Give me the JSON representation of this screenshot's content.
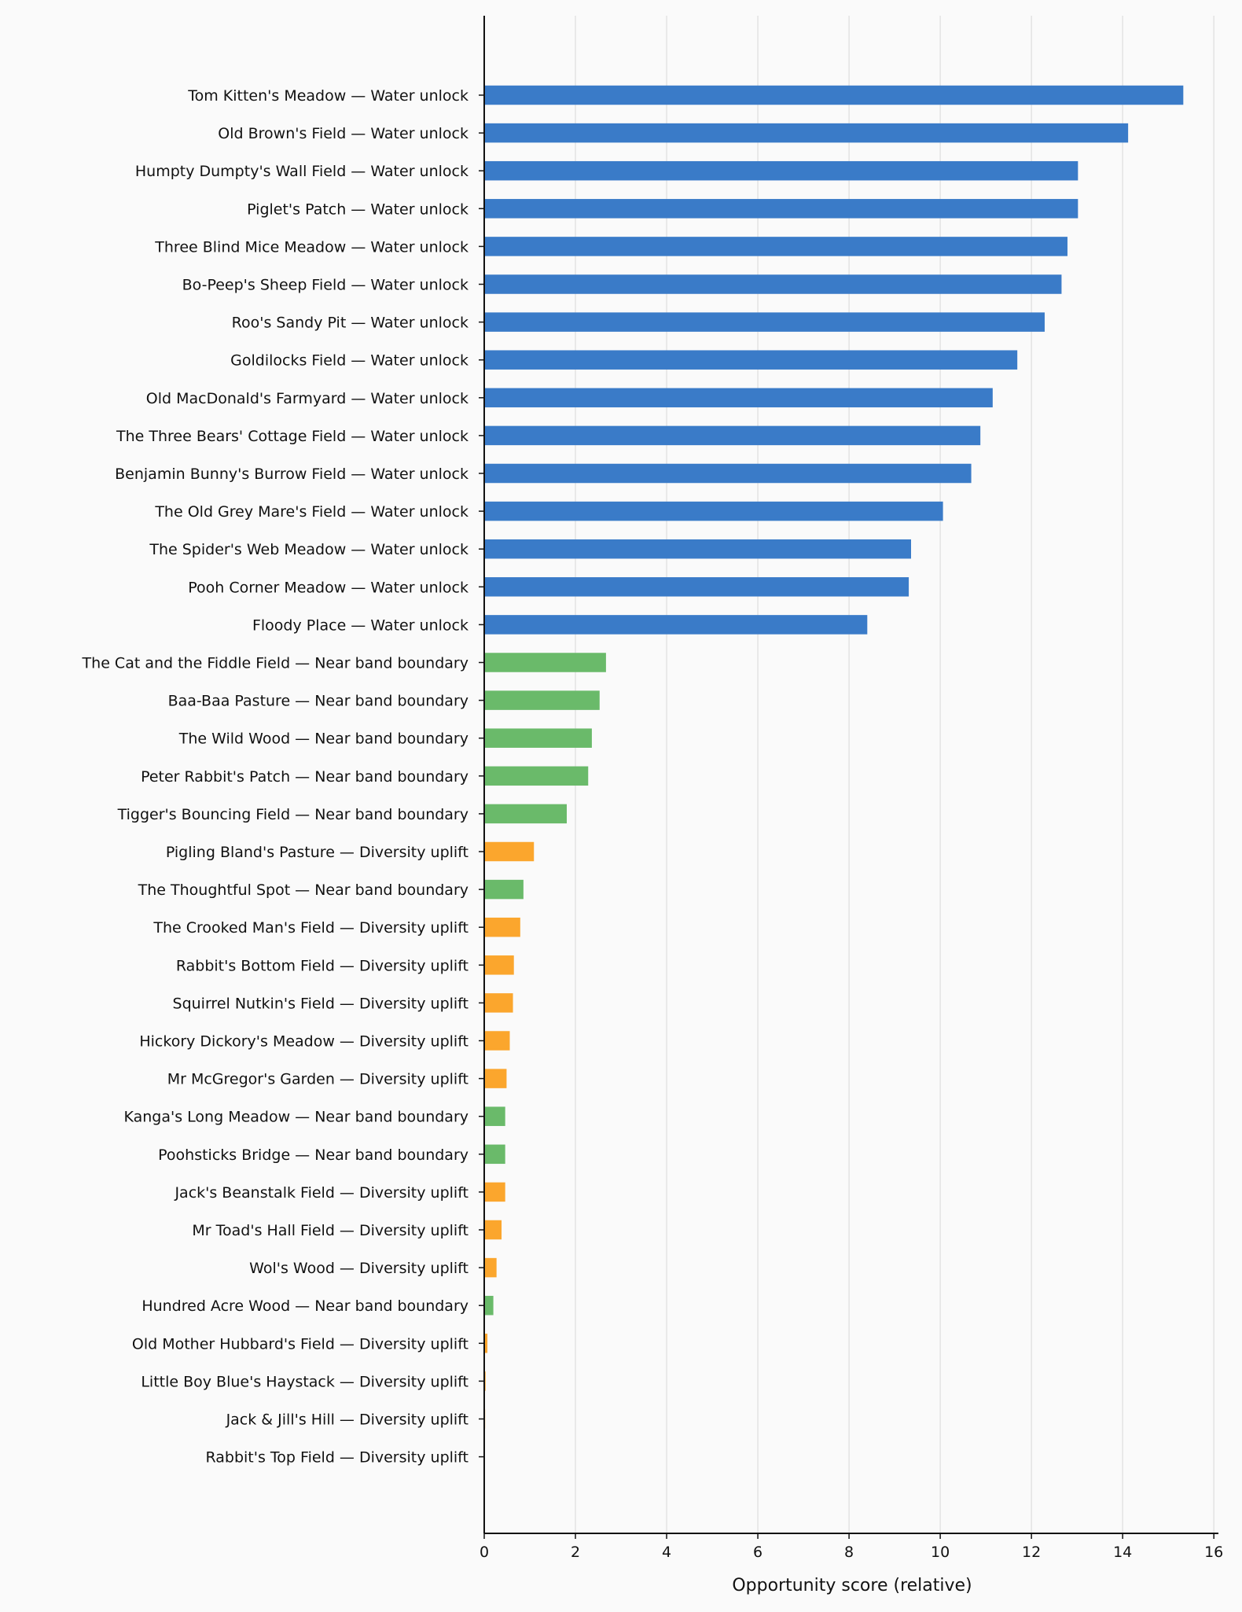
{
  "chart_data": {
    "type": "bar",
    "orientation": "horizontal",
    "xlabel": "Opportunity score (relative)",
    "ylabel": "",
    "title": "",
    "xlim": [
      0,
      16.1
    ],
    "xticks": [
      0,
      2,
      4,
      6,
      8,
      10,
      12,
      14,
      16
    ],
    "grid": "vertical",
    "colors": {
      "water_unlock": "#3a7bc8",
      "near_band_boundary": "#6aba6a",
      "diversity_uplift": "#fba62d"
    },
    "categories": [
      "Tom Kitten's Meadow — Water unlock",
      "Old Brown's Field — Water unlock",
      "Humpty Dumpty's Wall Field — Water unlock",
      "Piglet's Patch — Water unlock",
      "Three Blind Mice Meadow — Water unlock",
      "Bo-Peep's Sheep Field — Water unlock",
      "Roo's Sandy Pit — Water unlock",
      "Goldilocks Field — Water unlock",
      "Old MacDonald's Farmyard — Water unlock",
      "The Three Bears' Cottage Field — Water unlock",
      "Benjamin Bunny's Burrow Field — Water unlock",
      "The Old Grey Mare's Field — Water unlock",
      "The Spider's Web Meadow — Water unlock",
      "Pooh Corner Meadow — Water unlock",
      "Floody Place — Water unlock",
      "The Cat and the Fiddle Field — Near band boundary",
      "Baa-Baa Pasture — Near band boundary",
      "The Wild Wood — Near band boundary",
      "Peter Rabbit's Patch — Near band boundary",
      "Tigger's Bouncing Field — Near band boundary",
      "Pigling Bland's Pasture — Diversity uplift",
      "The Thoughtful Spot — Near band boundary",
      "The Crooked Man's Field — Diversity uplift",
      "Rabbit's Bottom Field — Diversity uplift",
      "Squirrel Nutkin's Field — Diversity uplift",
      "Hickory Dickory's Meadow — Diversity uplift",
      "Mr McGregor's Garden — Diversity uplift",
      "Kanga's Long Meadow — Near band boundary",
      "Poohsticks Bridge — Near band boundary",
      "Jack's Beanstalk Field — Diversity uplift",
      "Mr Toad's Hall Field — Diversity uplift",
      "Wol's Wood — Diversity uplift",
      "Hundred Acre Wood — Near band boundary",
      "Old Mother Hubbard's Field — Diversity uplift",
      "Little Boy Blue's Haystack — Diversity uplift",
      "Jack & Jill's Hill — Diversity uplift",
      "Rabbit's Top Field — Diversity uplift"
    ],
    "values": [
      15.33,
      14.12,
      13.02,
      13.02,
      12.79,
      12.66,
      12.29,
      11.69,
      11.15,
      10.88,
      10.68,
      10.06,
      9.36,
      9.31,
      8.4,
      2.67,
      2.53,
      2.36,
      2.28,
      1.81,
      1.09,
      0.86,
      0.79,
      0.65,
      0.63,
      0.56,
      0.49,
      0.46,
      0.46,
      0.46,
      0.38,
      0.27,
      0.2,
      0.07,
      0.03,
      0.02,
      0.01
    ],
    "groups": [
      "water_unlock",
      "water_unlock",
      "water_unlock",
      "water_unlock",
      "water_unlock",
      "water_unlock",
      "water_unlock",
      "water_unlock",
      "water_unlock",
      "water_unlock",
      "water_unlock",
      "water_unlock",
      "water_unlock",
      "water_unlock",
      "water_unlock",
      "near_band_boundary",
      "near_band_boundary",
      "near_band_boundary",
      "near_band_boundary",
      "near_band_boundary",
      "diversity_uplift",
      "near_band_boundary",
      "diversity_uplift",
      "diversity_uplift",
      "diversity_uplift",
      "diversity_uplift",
      "diversity_uplift",
      "near_band_boundary",
      "near_band_boundary",
      "diversity_uplift",
      "diversity_uplift",
      "diversity_uplift",
      "near_band_boundary",
      "diversity_uplift",
      "diversity_uplift",
      "diversity_uplift",
      "diversity_uplift"
    ]
  }
}
